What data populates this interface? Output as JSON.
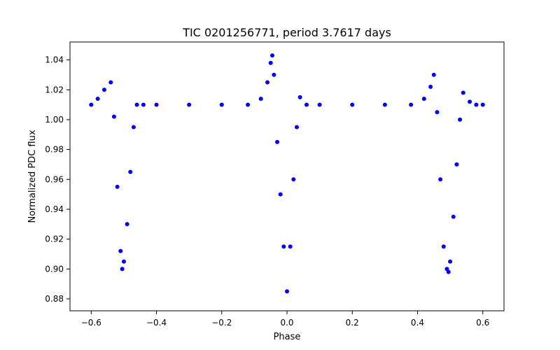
{
  "chart_data": {
    "type": "scatter",
    "title": "TIC 0201256771, period 3.7617 days",
    "xlabel": "Phase",
    "ylabel": "Normalized PDC flux",
    "xlim": [
      -0.665,
      0.665
    ],
    "ylim": [
      0.872,
      1.052
    ],
    "x_ticks": [
      -0.6,
      -0.4,
      -0.2,
      0.0,
      0.2,
      0.4,
      0.6
    ],
    "x_tick_labels": [
      "−0.6",
      "−0.4",
      "−0.2",
      "0.0",
      "0.2",
      "0.4",
      "0.6"
    ],
    "y_ticks": [
      0.88,
      0.9,
      0.92,
      0.94,
      0.96,
      0.98,
      1.0,
      1.02,
      1.04
    ],
    "y_tick_labels": [
      "0.88",
      "0.90",
      "0.92",
      "0.94",
      "0.96",
      "0.98",
      "1.00",
      "1.02",
      "1.04"
    ],
    "grid": false,
    "marker_color": "#0000ff",
    "series": [
      {
        "name": "PDC flux",
        "x": [
          -0.6,
          -0.58,
          -0.56,
          -0.54,
          -0.53,
          -0.52,
          -0.51,
          -0.505,
          -0.5,
          -0.49,
          -0.48,
          -0.47,
          -0.46,
          -0.44,
          -0.4,
          -0.3,
          -0.2,
          -0.12,
          -0.08,
          -0.06,
          -0.05,
          -0.045,
          -0.04,
          -0.03,
          -0.02,
          -0.01,
          0.0,
          0.01,
          0.02,
          0.03,
          0.04,
          0.06,
          0.1,
          0.2,
          0.3,
          0.38,
          0.42,
          0.44,
          0.45,
          0.46,
          0.47,
          0.48,
          0.49,
          0.495,
          0.5,
          0.51,
          0.52,
          0.53,
          0.54,
          0.56,
          0.58,
          0.6
        ],
        "y": [
          1.01,
          1.014,
          1.02,
          1.025,
          1.002,
          0.955,
          0.912,
          0.9,
          0.905,
          0.93,
          0.965,
          0.995,
          1.01,
          1.01,
          1.01,
          1.01,
          1.01,
          1.01,
          1.014,
          1.025,
          1.038,
          1.043,
          1.03,
          0.985,
          0.95,
          0.915,
          0.885,
          0.915,
          0.96,
          0.995,
          1.015,
          1.01,
          1.01,
          1.01,
          1.01,
          1.01,
          1.014,
          1.022,
          1.03,
          1.005,
          0.96,
          0.915,
          0.9,
          0.898,
          0.905,
          0.935,
          0.97,
          1.0,
          1.018,
          1.012,
          1.01,
          1.01
        ]
      }
    ]
  }
}
